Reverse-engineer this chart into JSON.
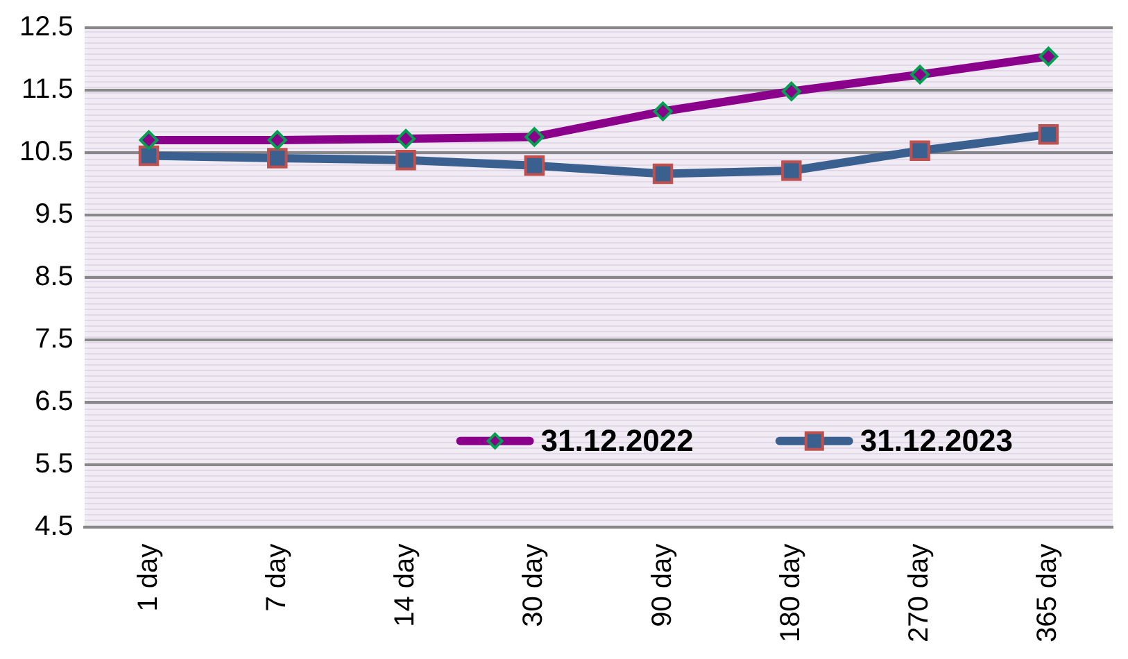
{
  "chart_data": {
    "type": "line",
    "categories": [
      "1 day",
      "7 day",
      "14 day",
      "30 day",
      "90 day",
      "180 day",
      "270 day",
      "365 day"
    ],
    "series": [
      {
        "name": "31.12.2022",
        "color": "#8b008b",
        "marker": "diamond",
        "values": [
          10.7,
          10.7,
          10.72,
          10.75,
          11.16,
          11.48,
          11.75,
          12.04
        ]
      },
      {
        "name": "31.12.2023",
        "color": "#3a6090",
        "marker": "square",
        "values": [
          10.45,
          10.41,
          10.38,
          10.29,
          10.16,
          10.21,
          10.53,
          10.79
        ]
      }
    ],
    "ylim": [
      4.5,
      12.5
    ],
    "yticks": [
      4.5,
      5.5,
      6.5,
      7.5,
      8.5,
      9.5,
      10.5,
      11.5,
      12.5
    ],
    "grid": "y",
    "legend": "bottom right",
    "line_style": "solid"
  }
}
